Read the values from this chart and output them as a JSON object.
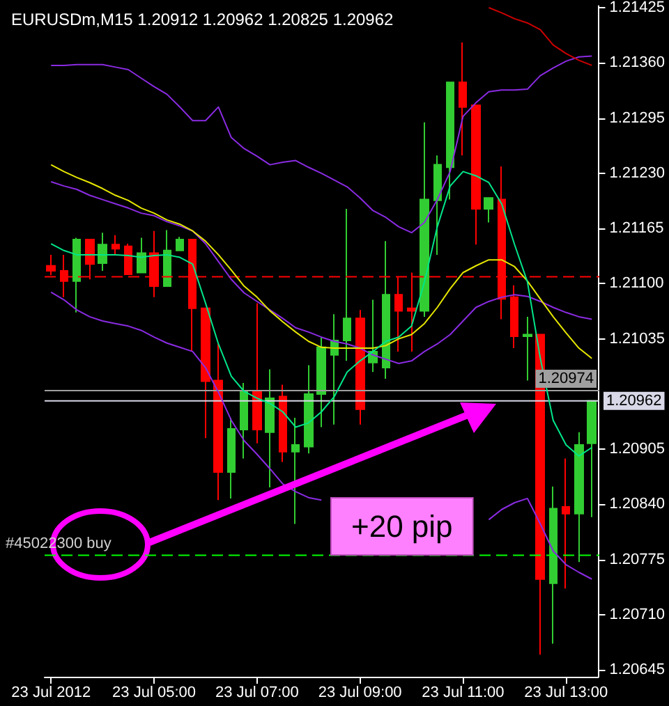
{
  "chart_data": {
    "type": "candlestick",
    "title": "EURUSDm,M15 1.20912 1.20962 1.20825 1.20962",
    "annotations": [
      "+20 pip"
    ],
    "categories": [
      "23 Jul 2012",
      null,
      null,
      null,
      null,
      null,
      null,
      null,
      "23 Jul 05:00",
      null,
      null,
      null,
      null,
      null,
      null,
      null,
      "23 Jul 07:00",
      null,
      null,
      null,
      null,
      null,
      null,
      null,
      "23 Jul 09:00",
      null,
      null,
      null,
      null,
      null,
      null,
      null,
      "23 Jul 11:00",
      null,
      null,
      null,
      null,
      null,
      null,
      null,
      "23 Jul 13:00",
      null,
      null
    ],
    "ohlc": [
      [
        1.21121,
        1.21134,
        1.2111,
        1.21115
      ],
      [
        1.21115,
        1.21134,
        1.21084,
        1.21103
      ],
      [
        1.21103,
        1.21154,
        1.21066,
        1.21152
      ],
      [
        1.21152,
        1.21152,
        1.21105,
        1.21123
      ],
      [
        1.21124,
        1.2116,
        1.21115,
        1.21146
      ],
      [
        1.21146,
        1.21157,
        1.21134,
        1.21141
      ],
      [
        1.21144,
        1.21147,
        1.21111,
        1.21111
      ],
      [
        1.21113,
        1.21154,
        1.21113,
        1.21136
      ],
      [
        1.21136,
        1.21162,
        1.21084,
        1.21097
      ],
      [
        1.21097,
        1.21163,
        1.21097,
        1.21139
      ],
      [
        1.21139,
        1.21155,
        1.21139,
        1.21152
      ],
      [
        1.21152,
        1.21152,
        1.2102,
        1.21071
      ],
      [
        1.21071,
        1.21071,
        1.20918,
        1.20985
      ],
      [
        1.20986,
        1.21029,
        1.20845,
        1.20878
      ],
      [
        1.20878,
        1.20942,
        1.20847,
        1.20929
      ],
      [
        1.20928,
        1.20983,
        1.20894,
        1.20973
      ],
      [
        1.20973,
        1.21077,
        1.20912,
        1.20928
      ],
      [
        1.20925,
        1.20999,
        1.2086,
        1.20965
      ],
      [
        1.20967,
        1.20981,
        1.2089,
        1.20902
      ],
      [
        1.20902,
        1.20942,
        1.20817,
        1.2091
      ],
      [
        1.20908,
        1.21004,
        1.209,
        1.2097
      ],
      [
        1.2097,
        1.21037,
        1.20931,
        1.21025
      ],
      [
        1.21016,
        1.21064,
        1.20934,
        1.21033
      ],
      [
        1.21033,
        1.21188,
        1.21009,
        1.21059
      ],
      [
        1.21059,
        1.21069,
        1.20934,
        1.20952
      ],
      [
        1.21007,
        1.21081,
        1.20996,
        1.2102
      ],
      [
        1.21001,
        1.2115,
        1.20988,
        1.21087
      ],
      [
        1.21087,
        1.21108,
        1.2102,
        1.21068
      ],
      [
        1.21071,
        1.21113,
        1.2102,
        1.21068
      ],
      [
        1.21068,
        1.2129,
        1.21061,
        1.21199
      ],
      [
        1.21198,
        1.21251,
        1.21134,
        1.2124
      ],
      [
        1.21237,
        1.21337,
        1.21199,
        1.21337
      ],
      [
        1.21337,
        1.21384,
        1.21251,
        1.21308
      ],
      [
        1.2131,
        1.2131,
        1.21146,
        1.21188
      ],
      [
        1.21188,
        1.21201,
        1.21172,
        1.21201
      ],
      [
        1.21199,
        1.21238,
        1.21058,
        1.21082
      ],
      [
        1.21084,
        1.21098,
        1.21024,
        1.21038
      ],
      [
        1.21038,
        1.21061,
        1.20986,
        1.2104
      ],
      [
        1.2104,
        1.2104,
        1.20663,
        1.20752
      ],
      [
        1.20747,
        1.20861,
        1.20676,
        1.20835
      ],
      [
        1.20837,
        1.20894,
        1.20741,
        1.20829
      ],
      [
        1.20829,
        1.20925,
        1.20772,
        1.2091
      ],
      [
        1.20912,
        1.20962,
        1.20825,
        1.20962
      ]
    ],
    "colors": [
      "#ff0000",
      "#ff0000",
      "#32cd32",
      "#ff0000",
      "#32cd32",
      "#ff0000",
      "#ff0000",
      "#32cd32",
      "#ff0000",
      "#32cd32",
      "#32cd32",
      "#ff0000",
      "#ff0000",
      "#ff0000",
      "#32cd32",
      "#32cd32",
      "#ff0000",
      "#32cd32",
      "#ff0000",
      "#32cd32",
      "#32cd32",
      "#32cd32",
      "#32cd32",
      "#32cd32",
      "#ff0000",
      "#32cd32",
      "#32cd32",
      "#ff0000",
      "#ff0000",
      "#32cd32",
      "#32cd32",
      "#32cd32",
      "#ff0000",
      "#ff0000",
      "#32cd32",
      "#ff0000",
      "#ff0000",
      "#32cd32",
      "#ff0000",
      "#32cd32",
      "#ff0000",
      "#32cd32",
      "#32cd32"
    ],
    "series": [
      {
        "type": "line",
        "color": "#8a2be2",
        "values": [
          1.21357,
          1.21357,
          1.21358,
          1.21358,
          1.21358,
          1.21355,
          1.21352,
          1.21342,
          1.21332,
          1.21323,
          1.21308,
          1.21292,
          1.21292,
          1.21308,
          1.21272,
          1.21259,
          1.2125,
          1.2124,
          1.21243,
          1.21245,
          1.21237,
          1.2123,
          1.21222,
          1.21214,
          1.21201,
          1.21186,
          1.21178,
          1.21167,
          1.2116,
          1.21172,
          1.21199,
          1.21232,
          1.21297,
          1.21313,
          1.21326,
          1.21328,
          1.21328,
          1.21329,
          1.21345,
          1.21354,
          1.21362,
          1.21367,
          1.21368
        ]
      },
      {
        "type": "line",
        "color": "#8a2be2",
        "values": [
          1.2122,
          1.21215,
          1.21211,
          1.21204,
          1.21199,
          1.21194,
          1.21189,
          1.21183,
          1.2118,
          1.21173,
          1.21168,
          1.21162,
          1.21147,
          1.21126,
          1.21105,
          1.21089,
          1.21079,
          1.21069,
          1.21059,
          1.21048,
          1.21043,
          1.21037,
          1.21032,
          1.21029,
          1.21024,
          1.21016,
          1.21011,
          1.21006,
          1.21009,
          1.2102,
          1.21029,
          1.2104,
          1.21056,
          1.21072,
          1.21079,
          1.21084,
          1.21087,
          1.21085,
          1.21079,
          1.21072,
          1.21066,
          1.21061,
          1.21058
        ]
      },
      {
        "type": "line",
        "color": "#8a2be2",
        "values": [
          1.2109,
          1.21081,
          1.21069,
          1.21061,
          1.21056,
          1.21053,
          1.2105,
          1.21045,
          1.21037,
          1.2103,
          1.21025,
          1.2102,
          1.21001,
          1.20972,
          1.20939,
          1.20915,
          1.20899,
          1.20882,
          1.20864,
          1.20855,
          1.20848,
          1.20845,
          null,
          null,
          null,
          null,
          null,
          null,
          null,
          null,
          null,
          null,
          null,
          null,
          1.20822,
          1.20834,
          1.20842,
          1.20847,
          1.20817,
          1.20785,
          1.20769,
          1.2076,
          1.20752
        ]
      },
      {
        "type": "line",
        "color": "#e6e600",
        "values": [
          1.2124,
          1.21232,
          1.21225,
          1.21219,
          1.21212,
          1.21204,
          1.21198,
          1.21189,
          1.21183,
          1.21175,
          1.2117,
          1.21162,
          1.2115,
          1.21134,
          1.21116,
          1.21097,
          1.21084,
          1.21068,
          1.21055,
          1.21043,
          1.21032,
          1.21025,
          1.21024,
          1.21024,
          1.21024,
          1.21024,
          1.21027,
          1.21035,
          1.2104,
          1.21053,
          1.21072,
          1.21094,
          1.21113,
          1.21121,
          1.21128,
          1.21128,
          1.2112,
          1.21103,
          1.21082,
          1.21061,
          1.21042,
          1.21024,
          1.21012
        ]
      },
      {
        "type": "line",
        "color": "#00e68a",
        "values": [
          1.21147,
          1.21139,
          1.21134,
          1.21134,
          1.21134,
          1.21134,
          1.21133,
          1.21131,
          1.21133,
          1.21134,
          1.21131,
          1.21123,
          1.21077,
          1.21029,
          1.20991,
          1.20973,
          1.20965,
          1.20959,
          1.20949,
          1.20931,
          1.20936,
          1.20949,
          1.20967,
          1.20996,
          1.21009,
          1.2102,
          1.21032,
          1.21037,
          1.2105,
          1.21102,
          1.21167,
          1.21215,
          1.21232,
          1.21227,
          1.21219,
          1.21194,
          1.21146,
          1.21102,
          1.21012,
          1.20939,
          1.2091,
          1.20897,
          1.20907
        ]
      },
      {
        "type": "line",
        "color": "#cc0000",
        "values": [
          null,
          null,
          null,
          null,
          null,
          null,
          null,
          null,
          null,
          null,
          null,
          null,
          null,
          null,
          null,
          null,
          null,
          null,
          null,
          null,
          null,
          null,
          null,
          null,
          null,
          null,
          null,
          null,
          null,
          null,
          null,
          null,
          null,
          null,
          1.21425,
          1.21419,
          1.21412,
          1.21407,
          1.21399,
          1.21381,
          1.21371,
          1.21363,
          1.21357
        ]
      }
    ],
    "ylim": [
      1.20637,
      1.21427
    ],
    "yticks": [
      {
        "value": 1.21425,
        "label": "1.21425"
      },
      {
        "value": 1.2136,
        "label": "1.21360"
      },
      {
        "value": 1.21295,
        "label": "1.21295"
      },
      {
        "value": 1.2123,
        "label": "1.21230"
      },
      {
        "value": 1.21165,
        "label": "1.21165"
      },
      {
        "value": 1.211,
        "label": "1.21100"
      },
      {
        "value": 1.21035,
        "label": "1.21035"
      },
      {
        "value": 1.20905,
        "label": "1.20905"
      },
      {
        "value": 1.2084,
        "label": "1.20840"
      },
      {
        "value": 1.20775,
        "label": "1.20775"
      },
      {
        "value": 1.2071,
        "label": "1.20710"
      },
      {
        "value": 1.20645,
        "label": "1.20645"
      }
    ],
    "ref_lines": [
      {
        "axis": "y",
        "value": 1.21108,
        "label": null,
        "color": "#ff0000",
        "line_style": "dashed"
      },
      {
        "axis": "y",
        "value": 1.2078,
        "label": "#45022300 buy",
        "color": "#00ff00",
        "line_style": "dashed"
      },
      {
        "axis": "y",
        "value": 1.20974,
        "label": "1.20974",
        "color": "#a0a0a0",
        "line_style": "solid"
      },
      {
        "axis": "y",
        "value": 1.20962,
        "label": "1.20962",
        "color": "#d8d8e8",
        "line_style": "solid"
      }
    ],
    "marker": "none"
  }
}
